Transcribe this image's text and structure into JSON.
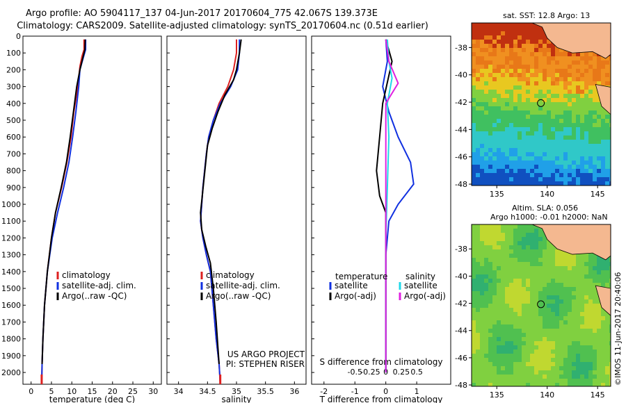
{
  "header": {
    "line1": "Argo profile: AO 5904117_137 04-Jun-2017 20170604_775 42.067S 139.373E",
    "line2": "Climatology: CARS2009. Satellite-adjusted climatology: synTS_20170604.nc (0.51d earlier)"
  },
  "colors": {
    "climatology": "#dd2020",
    "satellite": "#1030e0",
    "argo": "#000000",
    "sat_salinity": "#20d8e8",
    "argo_salinity": "#e020e0"
  },
  "chart_data": [
    {
      "type": "line",
      "xlabel": "temperature (deg C)",
      "ylabel": "",
      "xlim": [
        -2,
        32
      ],
      "ylim": [
        2070,
        0
      ],
      "xticks": [
        0,
        5,
        10,
        15,
        20,
        25,
        30
      ],
      "yticks": [
        0,
        100,
        200,
        300,
        400,
        500,
        600,
        700,
        800,
        900,
        1000,
        1100,
        1200,
        1300,
        1400,
        1500,
        1600,
        1700,
        1800,
        1900,
        2000
      ],
      "legend": [
        "climatology",
        "satellite-adj. clim.",
        "Argo(..raw -QC)"
      ],
      "series": [
        {
          "name": "climatology",
          "points": [
            [
              13,
              20
            ],
            [
              13,
              80
            ],
            [
              12.5,
              120
            ],
            [
              12,
              180
            ],
            [
              11.5,
              300
            ],
            [
              10.5,
              450
            ],
            [
              9.8,
              600
            ],
            [
              8.8,
              750
            ],
            [
              7.5,
              900
            ],
            [
              6,
              1050
            ],
            [
              5,
              1200
            ],
            [
              4,
              1400
            ],
            [
              3.3,
              1600
            ],
            [
              2.9,
              1800
            ],
            [
              2.7,
              1950
            ],
            [
              2.6,
              2070
            ]
          ]
        },
        {
          "name": "satellite-adj. clim.",
          "points": [
            [
              13.4,
              20
            ],
            [
              13.4,
              80
            ],
            [
              12.8,
              130
            ],
            [
              12,
              200
            ],
            [
              11.7,
              300
            ],
            [
              11,
              450
            ],
            [
              10.2,
              600
            ],
            [
              9.3,
              750
            ],
            [
              8,
              900
            ],
            [
              6.5,
              1050
            ],
            [
              5.2,
              1200
            ],
            [
              4,
              1400
            ],
            [
              3.3,
              1600
            ],
            [
              2.9,
              1800
            ],
            [
              2.7,
              1950
            ],
            [
              2.6,
              2070
            ]
          ]
        },
        {
          "name": "Argo(..raw -QC)",
          "points": [
            [
              13.3,
              20
            ],
            [
              13.2,
              80
            ],
            [
              12.7,
              130
            ],
            [
              12,
              200
            ],
            [
              11.2,
              300
            ],
            [
              10.4,
              450
            ],
            [
              9.6,
              600
            ],
            [
              8.7,
              750
            ],
            [
              7.4,
              900
            ],
            [
              6,
              1050
            ],
            [
              5,
              1200
            ],
            [
              4,
              1400
            ],
            [
              3.3,
              1600
            ],
            [
              2.9,
              1800
            ],
            [
              2.7,
              1950
            ]
          ]
        }
      ]
    },
    {
      "type": "line",
      "xlabel": "salinity",
      "xlim": [
        33.8,
        36.2
      ],
      "ylim": [
        2070,
        0
      ],
      "xticks": [
        34,
        34.5,
        35,
        35.5,
        36
      ],
      "legend": [
        "climatology",
        "satellite-adj. clim.",
        "Argo(..raw -QC)"
      ],
      "annotation": [
        "US ARGO PROJECT",
        "PI: STEPHEN RISER"
      ],
      "series": [
        {
          "name": "climatology",
          "points": [
            [
              35,
              20
            ],
            [
              35,
              100
            ],
            [
              34.95,
              200
            ],
            [
              34.85,
              300
            ],
            [
              34.7,
              400
            ],
            [
              34.6,
              500
            ],
            [
              34.52,
              600
            ],
            [
              34.48,
              700
            ],
            [
              34.45,
              800
            ],
            [
              34.42,
              900
            ],
            [
              34.4,
              1000
            ],
            [
              34.38,
              1100
            ],
            [
              34.42,
              1200
            ],
            [
              34.48,
              1300
            ],
            [
              34.55,
              1400
            ],
            [
              34.6,
              1600
            ],
            [
              34.65,
              1800
            ],
            [
              34.7,
              1950
            ],
            [
              34.72,
              2070
            ]
          ]
        },
        {
          "name": "satellite-adj. clim.",
          "points": [
            [
              35.05,
              20
            ],
            [
              35.05,
              100
            ],
            [
              35.02,
              200
            ],
            [
              34.9,
              300
            ],
            [
              34.72,
              400
            ],
            [
              34.6,
              500
            ],
            [
              34.52,
              600
            ],
            [
              34.48,
              700
            ],
            [
              34.45,
              800
            ],
            [
              34.42,
              900
            ],
            [
              34.4,
              1000
            ],
            [
              34.38,
              1100
            ],
            [
              34.42,
              1200
            ],
            [
              34.48,
              1300
            ],
            [
              34.55,
              1400
            ],
            [
              34.6,
              1600
            ],
            [
              34.65,
              1800
            ],
            [
              34.7,
              1950
            ],
            [
              34.72,
              2070
            ]
          ]
        },
        {
          "name": "Argo(..raw -QC)",
          "points": [
            [
              35.08,
              20
            ],
            [
              35.05,
              100
            ],
            [
              35.0,
              200
            ],
            [
              34.95,
              260
            ],
            [
              34.8,
              350
            ],
            [
              34.68,
              450
            ],
            [
              34.58,
              550
            ],
            [
              34.5,
              650
            ],
            [
              34.47,
              750
            ],
            [
              34.44,
              850
            ],
            [
              34.41,
              950
            ],
            [
              34.38,
              1050
            ],
            [
              34.4,
              1150
            ],
            [
              34.47,
              1250
            ],
            [
              34.55,
              1350
            ],
            [
              34.6,
              1500
            ],
            [
              34.65,
              1700
            ],
            [
              34.68,
              1850
            ],
            [
              34.7,
              1950
            ]
          ]
        }
      ]
    },
    {
      "type": "line",
      "xlabel": "T difference from climatology",
      "xlabel_top": "S difference from climatology",
      "xlim": [
        -2.4,
        2.1
      ],
      "ylim": [
        2070,
        0
      ],
      "xticks": [
        -2,
        -1,
        0,
        1
      ],
      "xticks_top": [
        -0.5,
        -0.25,
        0,
        0.25,
        0.5
      ],
      "legend_left_title": "temperature",
      "legend_right_title": "salinity",
      "legend_items": [
        "satellite",
        "Argo(-adj)",
        "satellite",
        "Argo(-adj)"
      ],
      "series": [
        {
          "name": "satellite",
          "points": [
            [
              0,
              20
            ],
            [
              0.05,
              150
            ],
            [
              -0.1,
              300
            ],
            [
              0.1,
              450
            ],
            [
              0.4,
              600
            ],
            [
              0.8,
              750
            ],
            [
              0.9,
              880
            ],
            [
              0.4,
              1000
            ],
            [
              0.1,
              1100
            ],
            [
              0,
              1300
            ],
            [
              0,
              2000
            ]
          ]
        },
        {
          "name": "Argo(-adj)",
          "points": [
            [
              0,
              20
            ],
            [
              0.2,
              150
            ],
            [
              -0.1,
              400
            ],
            [
              -0.2,
              600
            ],
            [
              -0.3,
              800
            ],
            [
              -0.2,
              950
            ],
            [
              0,
              1050
            ],
            [
              0,
              1300
            ],
            [
              0,
              2000
            ]
          ]
        },
        {
          "name": "satellite",
          "points": [
            [
              0.05,
              20
            ],
            [
              0.1,
              150
            ],
            [
              0.2,
              250
            ],
            [
              0.05,
              400
            ],
            [
              0.1,
              600
            ],
            [
              0.05,
              900
            ],
            [
              0,
              1200
            ],
            [
              0,
              2000
            ]
          ]
        },
        {
          "name": "Argo(-adj)",
          "points": [
            [
              0,
              20
            ],
            [
              0.1,
              150
            ],
            [
              0.4,
              280
            ],
            [
              0,
              400
            ],
            [
              0,
              700
            ],
            [
              0,
              1000
            ],
            [
              0,
              1300
            ],
            [
              0,
              2000
            ]
          ]
        }
      ]
    }
  ],
  "maps": {
    "top_title": "sat. SST: 12.8 Argo: 13",
    "bottom_title_1": "Altim. SLA: 0.056",
    "bottom_title_2": "Argo h1000: -0.01 h2000: NaN",
    "lat_ticks": [
      -38,
      -40,
      -42,
      -44,
      -46,
      -48
    ],
    "lon_ticks": [
      135,
      140,
      145
    ],
    "stamp": "©IMOS 11-Jun-2017 20:40:06",
    "argo_pos": {
      "lon": 139.373,
      "lat": -42.067
    }
  }
}
